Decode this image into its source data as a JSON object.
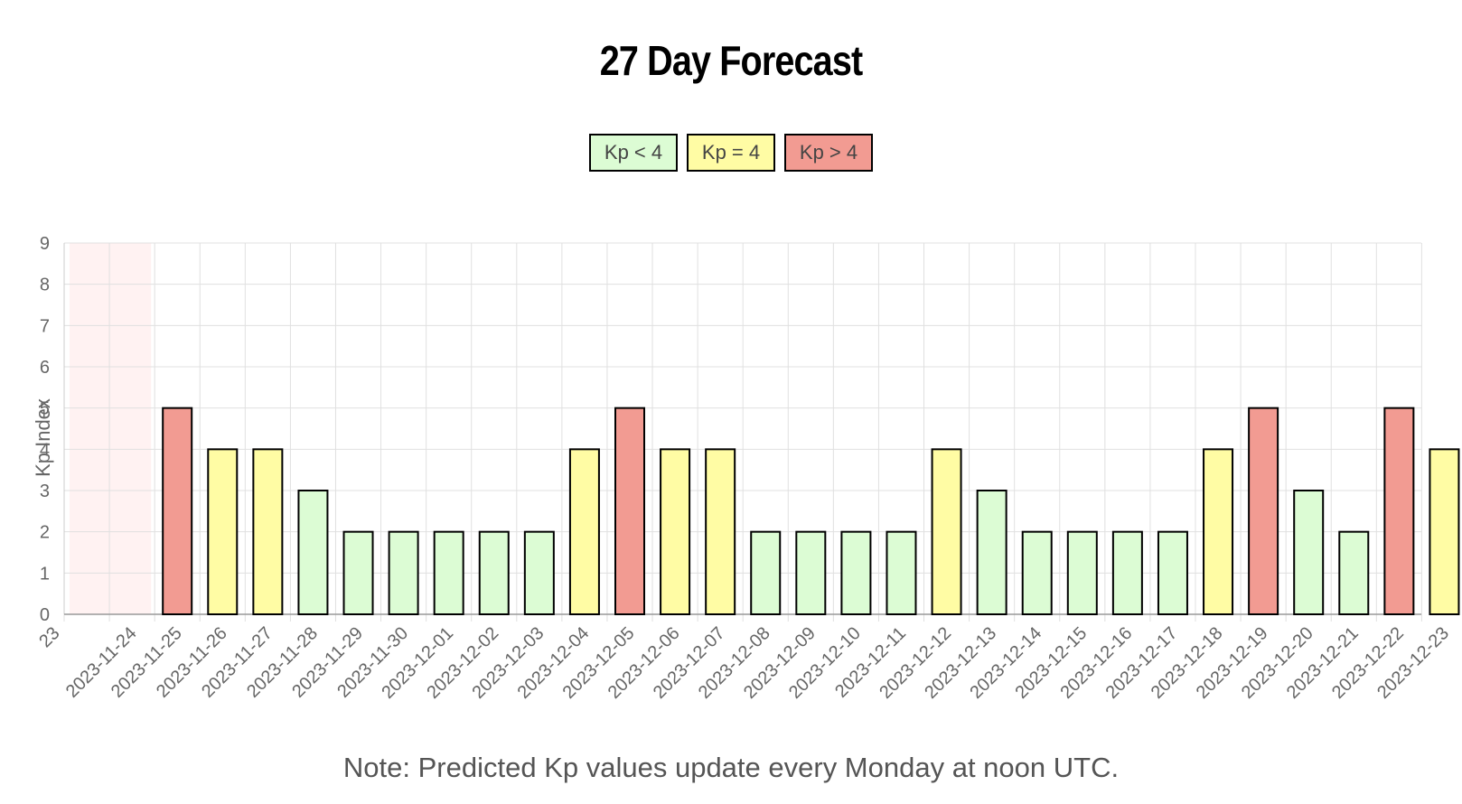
{
  "title": "27 Day Forecast",
  "legend": [
    {
      "label": "Kp < 4",
      "color": "#dcfcd4"
    },
    {
      "label": "Kp = 4",
      "color": "#fffca4"
    },
    {
      "label": "Kp > 4",
      "color": "#f29b92"
    }
  ],
  "note": "Note: Predicted Kp values update every Monday at noon UTC.",
  "chart_data": {
    "type": "bar",
    "ylabel": "Kp Index",
    "ylim": [
      0,
      9
    ],
    "yticks": [
      0,
      1,
      2,
      3,
      4,
      5,
      6,
      7,
      8,
      9
    ],
    "grid": true,
    "legend_position": "top",
    "partial_tick_labels": [
      "23",
      "2023-11-24"
    ],
    "categories": [
      "2023-11-25",
      "2023-11-26",
      "2023-11-27",
      "2023-11-28",
      "2023-11-29",
      "2023-11-30",
      "2023-12-01",
      "2023-12-02",
      "2023-12-03",
      "2023-12-04",
      "2023-12-05",
      "2023-12-06",
      "2023-12-07",
      "2023-12-08",
      "2023-12-09",
      "2023-12-10",
      "2023-12-11",
      "2023-12-12",
      "2023-12-13",
      "2023-12-14",
      "2023-12-15",
      "2023-12-16",
      "2023-12-17",
      "2023-12-18",
      "2023-12-19",
      "2023-12-20",
      "2023-12-21",
      "2023-12-22",
      "2023-12-23"
    ],
    "values": [
      5,
      4,
      4,
      3,
      2,
      2,
      2,
      2,
      2,
      4,
      5,
      4,
      4,
      2,
      2,
      2,
      2,
      4,
      3,
      2,
      2,
      2,
      2,
      4,
      5,
      3,
      2,
      5,
      4
    ]
  }
}
